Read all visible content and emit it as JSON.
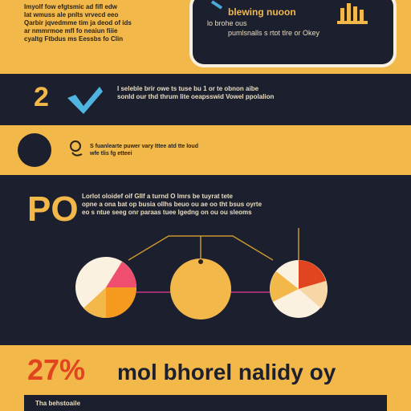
{
  "section1": {
    "text_lines": [
      "Imyolf fow efgtsmic ad fifl edw",
      "Iat wmuss ale pnlts vrvecd eeo",
      "Qarbir jqvedmme tim ja deod of ids",
      "ar nmmrmoe mfl fo neaiun fiiie",
      "cyaltg Ftbdus ms Eessbs fo Clin"
    ],
    "card_head": "blewing nuoon",
    "card_sub": "lo brohe ous",
    "card_desc": "pumlsnalls s rtot tlre or Okey"
  },
  "section2": {
    "number": "2",
    "lines": [
      "I seleble brir owe ts tuse bu 1 or te obnon aibe",
      "sonld our thd thrum Iite oeapsswid Vowel ppolalion"
    ]
  },
  "section3": {
    "lines": [
      "S fuanlearte puwer vary Ittee atd tte loud",
      "wfe tlis fg etteei"
    ]
  },
  "section4": {
    "code": "PO",
    "lines": [
      "Lorlot oloidef oif GIIf a turnd O lmrs be tuyrat tete",
      "opne a ona bat op busia ollhs beuo ou ae oo tht bsus oyrte",
      "eo s ntue seeg onr paraas tuee lgedng on ou ou sleoms"
    ]
  },
  "section5": {
    "percent": "27%",
    "title": "mol bhorel nalidy oy",
    "strip": "Tha behstoaile"
  },
  "colors": {
    "gold": "#f2b84a",
    "navy": "#1c1f2e",
    "red": "#e0451f",
    "pink": "#f04e6e",
    "orange": "#f59a1e",
    "cream": "#fbf1e0"
  }
}
